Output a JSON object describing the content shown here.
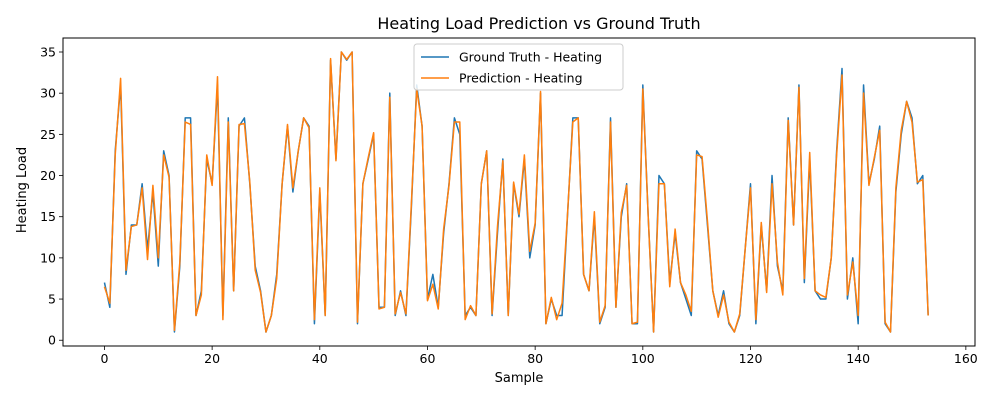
{
  "chart_data": {
    "type": "line",
    "title": "Heating Load Prediction vs Ground Truth",
    "xlabel": "Sample",
    "ylabel": "Heating Load",
    "xlim": [
      -7.7,
      161.7
    ],
    "ylim": [
      -0.7,
      36.7
    ],
    "xticks": [
      0,
      20,
      40,
      60,
      80,
      100,
      120,
      140,
      160
    ],
    "yticks": [
      0,
      5,
      10,
      15,
      20,
      25,
      30,
      35
    ],
    "legend_position": "upper center",
    "grid": false,
    "series": [
      {
        "name": "Ground Truth - Heating",
        "color": "#1f77b4",
        "values": [
          7,
          4,
          23,
          31,
          8,
          14,
          14,
          19,
          11,
          18,
          9,
          23,
          20,
          1,
          9,
          27,
          27,
          3,
          6,
          22,
          19,
          31,
          3,
          27,
          6,
          26,
          27,
          19,
          9,
          6,
          1,
          3,
          8,
          19,
          26,
          18,
          23,
          27,
          26,
          2,
          18,
          3,
          34,
          22,
          35,
          34,
          35,
          2,
          19,
          22,
          25,
          4,
          4,
          30,
          3,
          6,
          3,
          16,
          31,
          26,
          5,
          8,
          4,
          13,
          19,
          27,
          25,
          3,
          4,
          3,
          19,
          23,
          3,
          13,
          22,
          3,
          19,
          15,
          22,
          10,
          14,
          30,
          2,
          5,
          3,
          3,
          15,
          27,
          27,
          8,
          6,
          15,
          2,
          4,
          27,
          4,
          15,
          19,
          2,
          2,
          31,
          15,
          1,
          20,
          19,
          7,
          13,
          7,
          5,
          3,
          23,
          22,
          14,
          6,
          3,
          6,
          2,
          1,
          3,
          11,
          19,
          2,
          14,
          6,
          20,
          9,
          6,
          27,
          14,
          31,
          7,
          22,
          6,
          5,
          5,
          10,
          23,
          33,
          5,
          10,
          2,
          31,
          19,
          22,
          26,
          2,
          1,
          18,
          25,
          29,
          27,
          19,
          20,
          3
        ]
      },
      {
        "name": "Prediction - Heating",
        "color": "#ff7f0e",
        "values": [
          6.5,
          4.5,
          22.5,
          31.8,
          8.5,
          13.8,
          14,
          18.5,
          9.8,
          18.8,
          10,
          22.5,
          19.8,
          1.2,
          9.5,
          26.5,
          26.2,
          3,
          5.5,
          22.5,
          18.8,
          32,
          2.5,
          26.5,
          6,
          26.2,
          26.3,
          19.2,
          8.5,
          5.8,
          1,
          3,
          7.5,
          19,
          26.2,
          18.5,
          23,
          27,
          25.8,
          2.5,
          18.5,
          3,
          34.2,
          21.8,
          35,
          34.1,
          35,
          2.2,
          19,
          22.2,
          25.2,
          3.8,
          4,
          29.5,
          3.2,
          5.8,
          3.2,
          16.5,
          30.5,
          26,
          4.8,
          6.8,
          3.8,
          13.5,
          18.8,
          26.5,
          26.5,
          2.5,
          4.2,
          3,
          19,
          23,
          3.2,
          13.8,
          21.8,
          3,
          19.2,
          15.3,
          22.5,
          10.8,
          14.2,
          30.2,
          2,
          5.2,
          2.5,
          4.5,
          15.2,
          26.5,
          27,
          8,
          6,
          15.6,
          2.2,
          4.2,
          26.5,
          4,
          15.5,
          18.8,
          2,
          2.2,
          30.5,
          15,
          1,
          19,
          19,
          6.5,
          13.5,
          7,
          5.5,
          3.5,
          22.5,
          22.3,
          14.5,
          6,
          2.8,
          5.5,
          2.2,
          1,
          3.2,
          11,
          18.5,
          2.5,
          14.3,
          5.8,
          19,
          9.5,
          5.5,
          26.7,
          14,
          30.7,
          7.5,
          22.8,
          6,
          5.5,
          5.2,
          10,
          22.5,
          32.2,
          5.5,
          9.5,
          3,
          30,
          18.8,
          22.2,
          25.5,
          2.2,
          1,
          18.5,
          25.5,
          29,
          26.5,
          19.2,
          19.5,
          3
        ]
      }
    ]
  }
}
